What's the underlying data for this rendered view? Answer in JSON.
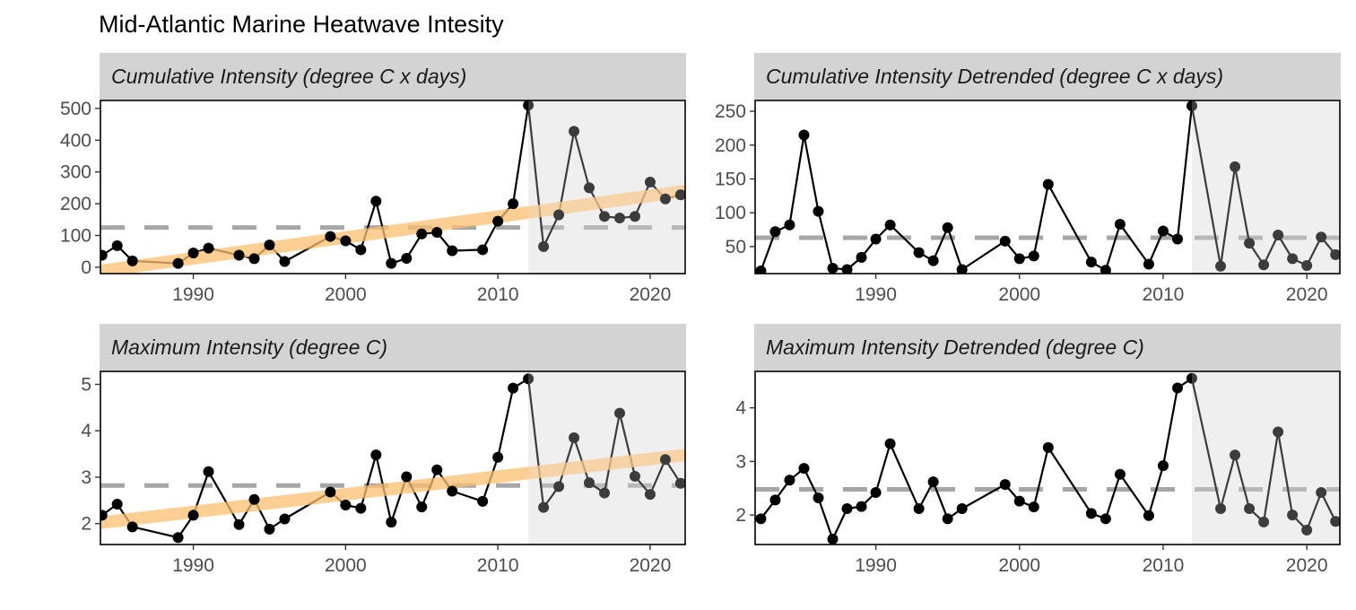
{
  "title": "Mid-Atlantic Marine Heatwave Intesity",
  "colors": {
    "line": "#000000",
    "trend": "#fdbf6f",
    "mean": "#a6a6a6",
    "shade": "#efefef",
    "strip": "#d3d3d3"
  },
  "chart_data": [
    {
      "type": "line",
      "title": "Cumulative Intensity (degree C x days)",
      "xlim": [
        1983.9,
        2022.3
      ],
      "ylim": [
        -20,
        525
      ],
      "xticks": [
        1990,
        2000,
        2010,
        2020
      ],
      "yticks": [
        0,
        100,
        200,
        300,
        400,
        500
      ],
      "shade_from": 2012,
      "mean": 125,
      "trend": [
        [
          1983.9,
          -12
        ],
        [
          2022.3,
          240
        ]
      ],
      "x": [
        1984,
        1985,
        1986,
        1989,
        1990,
        1991,
        1993,
        1994,
        1995,
        1996,
        1999,
        2000,
        2001,
        2002,
        2003,
        2004,
        2005,
        2006,
        2007,
        2009,
        2010,
        2011,
        2012,
        2013,
        2014,
        2015,
        2016,
        2017,
        2018,
        2019,
        2020,
        2021,
        2022
      ],
      "y": [
        38,
        68,
        20,
        12,
        45,
        60,
        38,
        27,
        70,
        18,
        97,
        83,
        55,
        208,
        12,
        28,
        105,
        110,
        52,
        55,
        145,
        200,
        510,
        65,
        165,
        428,
        250,
        160,
        155,
        160,
        268,
        215,
        228
      ]
    },
    {
      "type": "line",
      "title": "Cumulative Intensity Detrended (degree C x days)",
      "xlim": [
        1981.6,
        2022.3
      ],
      "ylim": [
        10,
        266
      ],
      "xticks": [
        1990,
        2000,
        2010,
        2020
      ],
      "yticks": [
        50,
        100,
        150,
        200,
        250
      ],
      "shade_from": 2012,
      "mean": 63,
      "x": [
        1982,
        1983,
        1984,
        1985,
        1986,
        1987,
        1988,
        1989,
        1990,
        1991,
        1993,
        1994,
        1995,
        1996,
        1999,
        2000,
        2001,
        2002,
        2005,
        2006,
        2007,
        2009,
        2010,
        2011,
        2012,
        2014,
        2015,
        2016,
        2017,
        2018,
        2019,
        2020,
        2021,
        2022
      ],
      "y": [
        14,
        72,
        82,
        215,
        102,
        18,
        16,
        34,
        61,
        82,
        41,
        29,
        78,
        16,
        58,
        32,
        36,
        142,
        27,
        15,
        83,
        24,
        73,
        61,
        258,
        21,
        168,
        55,
        23,
        67,
        32,
        22,
        64,
        38
      ]
    },
    {
      "type": "line",
      "title": "Maximum Intensity (degree C)",
      "xlim": [
        1983.9,
        2022.3
      ],
      "ylim": [
        1.55,
        5.28
      ],
      "xticks": [
        1990,
        2000,
        2010,
        2020
      ],
      "yticks": [
        2,
        3,
        4,
        5
      ],
      "shade_from": 2012,
      "mean": 2.82,
      "trend": [
        [
          1983.9,
          2.02
        ],
        [
          2022.3,
          3.48
        ]
      ],
      "x": [
        1984,
        1985,
        1986,
        1989,
        1990,
        1991,
        1993,
        1994,
        1995,
        1996,
        1999,
        2000,
        2001,
        2002,
        2003,
        2004,
        2005,
        2006,
        2007,
        2009,
        2010,
        2011,
        2012,
        2013,
        2014,
        2015,
        2016,
        2017,
        2018,
        2019,
        2020,
        2021,
        2022
      ],
      "y": [
        2.18,
        2.42,
        1.93,
        1.7,
        2.18,
        3.12,
        1.98,
        2.52,
        1.88,
        2.1,
        2.68,
        2.4,
        2.33,
        3.48,
        2.03,
        3.01,
        2.36,
        3.16,
        2.7,
        2.48,
        3.43,
        4.92,
        5.12,
        2.35,
        2.8,
        3.85,
        2.88,
        2.66,
        4.38,
        3.02,
        2.63,
        3.38,
        2.87
      ]
    },
    {
      "type": "line",
      "title": "Maximum Intensity Detrended (degree C)",
      "xlim": [
        1981.6,
        2022.3
      ],
      "ylim": [
        1.45,
        4.68
      ],
      "xticks": [
        1990,
        2000,
        2010,
        2020
      ],
      "yticks": [
        2,
        3,
        4
      ],
      "shade_from": 2012,
      "mean": 2.48,
      "x": [
        1982,
        1983,
        1984,
        1985,
        1986,
        1987,
        1988,
        1989,
        1990,
        1991,
        1993,
        1994,
        1995,
        1996,
        1999,
        2000,
        2001,
        2002,
        2005,
        2006,
        2007,
        2009,
        2010,
        2011,
        2012,
        2014,
        2015,
        2016,
        2017,
        2018,
        2019,
        2020,
        2021,
        2022
      ],
      "y": [
        1.93,
        2.28,
        2.65,
        2.87,
        2.32,
        1.55,
        2.12,
        2.16,
        2.42,
        3.33,
        2.12,
        2.62,
        1.93,
        2.12,
        2.57,
        2.26,
        2.15,
        3.26,
        2.03,
        1.93,
        2.76,
        1.99,
        2.92,
        4.37,
        4.55,
        2.12,
        3.12,
        2.12,
        1.87,
        3.55,
        2.0,
        1.72,
        2.42,
        1.88
      ]
    }
  ]
}
